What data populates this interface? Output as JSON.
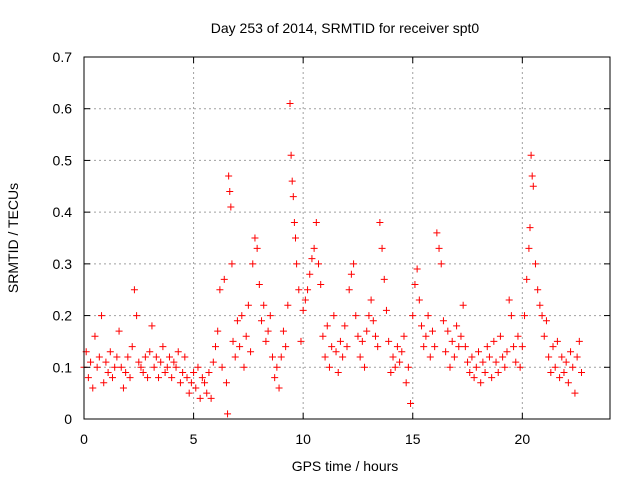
{
  "chart_data": {
    "type": "scatter",
    "title": "Day 253 of 2014, SRMTID for receiver spt0",
    "xlabel": "GPS time / hours",
    "ylabel": "SRMTID / TECUs",
    "xlim": [
      0,
      24
    ],
    "ylim": [
      0,
      0.7
    ],
    "xticks": [
      0,
      5,
      10,
      15,
      20
    ],
    "xtick_labels": [
      "0",
      "5",
      "10",
      "15",
      "20"
    ],
    "yticks": [
      0,
      0.1,
      0.2,
      0.3,
      0.4,
      0.5,
      0.6,
      0.7
    ],
    "ytick_labels": [
      "0",
      "0.1",
      "0.2",
      "0.3",
      "0.4",
      "0.5",
      "0.6",
      "0.7"
    ],
    "grid": true,
    "marker": "+",
    "color": "#ff0000",
    "series": [
      {
        "name": "spt0",
        "points": [
          [
            0.0,
            0.1
          ],
          [
            0.1,
            0.13
          ],
          [
            0.2,
            0.08
          ],
          [
            0.3,
            0.11
          ],
          [
            0.4,
            0.06
          ],
          [
            0.5,
            0.16
          ],
          [
            0.6,
            0.1
          ],
          [
            0.7,
            0.12
          ],
          [
            0.8,
            0.2
          ],
          [
            0.9,
            0.07
          ],
          [
            1.0,
            0.11
          ],
          [
            1.1,
            0.09
          ],
          [
            1.2,
            0.13
          ],
          [
            1.3,
            0.08
          ],
          [
            1.4,
            0.1
          ],
          [
            1.5,
            0.12
          ],
          [
            1.6,
            0.17
          ],
          [
            1.7,
            0.1
          ],
          [
            1.8,
            0.06
          ],
          [
            1.9,
            0.09
          ],
          [
            2.0,
            0.12
          ],
          [
            2.1,
            0.08
          ],
          [
            2.2,
            0.14
          ],
          [
            2.3,
            0.25
          ],
          [
            2.4,
            0.2
          ],
          [
            2.5,
            0.11
          ],
          [
            2.6,
            0.1
          ],
          [
            2.7,
            0.09
          ],
          [
            2.8,
            0.12
          ],
          [
            2.9,
            0.08
          ],
          [
            3.0,
            0.13
          ],
          [
            3.1,
            0.18
          ],
          [
            3.2,
            0.1
          ],
          [
            3.3,
            0.12
          ],
          [
            3.4,
            0.08
          ],
          [
            3.5,
            0.11
          ],
          [
            3.6,
            0.14
          ],
          [
            3.7,
            0.09
          ],
          [
            3.8,
            0.1
          ],
          [
            3.9,
            0.12
          ],
          [
            4.0,
            0.08
          ],
          [
            4.1,
            0.11
          ],
          [
            4.2,
            0.1
          ],
          [
            4.3,
            0.13
          ],
          [
            4.4,
            0.07
          ],
          [
            4.5,
            0.09
          ],
          [
            4.6,
            0.12
          ],
          [
            4.7,
            0.08
          ],
          [
            4.8,
            0.05
          ],
          [
            4.9,
            0.07
          ],
          [
            5.0,
            0.09
          ],
          [
            5.1,
            0.06
          ],
          [
            5.2,
            0.1
          ],
          [
            5.3,
            0.04
          ],
          [
            5.4,
            0.08
          ],
          [
            5.5,
            0.07
          ],
          [
            5.6,
            0.05
          ],
          [
            5.7,
            0.09
          ],
          [
            5.8,
            0.04
          ],
          [
            5.9,
            0.11
          ],
          [
            6.0,
            0.14
          ],
          [
            6.1,
            0.17
          ],
          [
            6.2,
            0.25
          ],
          [
            6.3,
            0.1
          ],
          [
            6.4,
            0.27
          ],
          [
            6.5,
            0.07
          ],
          [
            6.55,
            0.01
          ],
          [
            6.6,
            0.47
          ],
          [
            6.65,
            0.44
          ],
          [
            6.7,
            0.41
          ],
          [
            6.75,
            0.3
          ],
          [
            6.8,
            0.15
          ],
          [
            6.9,
            0.12
          ],
          [
            7.0,
            0.19
          ],
          [
            7.1,
            0.14
          ],
          [
            7.2,
            0.2
          ],
          [
            7.3,
            0.1
          ],
          [
            7.4,
            0.16
          ],
          [
            7.5,
            0.22
          ],
          [
            7.6,
            0.13
          ],
          [
            7.7,
            0.3
          ],
          [
            7.8,
            0.35
          ],
          [
            7.9,
            0.33
          ],
          [
            8.0,
            0.26
          ],
          [
            8.1,
            0.19
          ],
          [
            8.2,
            0.22
          ],
          [
            8.3,
            0.15
          ],
          [
            8.4,
            0.17
          ],
          [
            8.5,
            0.2
          ],
          [
            8.6,
            0.12
          ],
          [
            8.7,
            0.08
          ],
          [
            8.8,
            0.1
          ],
          [
            8.9,
            0.06
          ],
          [
            9.0,
            0.12
          ],
          [
            9.1,
            0.17
          ],
          [
            9.2,
            0.14
          ],
          [
            9.3,
            0.22
          ],
          [
            9.4,
            0.61
          ],
          [
            9.45,
            0.51
          ],
          [
            9.5,
            0.46
          ],
          [
            9.55,
            0.43
          ],
          [
            9.6,
            0.38
          ],
          [
            9.65,
            0.35
          ],
          [
            9.7,
            0.3
          ],
          [
            9.8,
            0.25
          ],
          [
            9.9,
            0.15
          ],
          [
            10.0,
            0.21
          ],
          [
            10.1,
            0.23
          ],
          [
            10.2,
            0.25
          ],
          [
            10.3,
            0.28
          ],
          [
            10.4,
            0.31
          ],
          [
            10.5,
            0.33
          ],
          [
            10.6,
            0.38
          ],
          [
            10.7,
            0.3
          ],
          [
            10.8,
            0.26
          ],
          [
            10.9,
            0.16
          ],
          [
            11.0,
            0.12
          ],
          [
            11.1,
            0.18
          ],
          [
            11.2,
            0.1
          ],
          [
            11.3,
            0.14
          ],
          [
            11.4,
            0.2
          ],
          [
            11.5,
            0.13
          ],
          [
            11.6,
            0.09
          ],
          [
            11.7,
            0.15
          ],
          [
            11.8,
            0.12
          ],
          [
            11.9,
            0.18
          ],
          [
            12.0,
            0.14
          ],
          [
            12.1,
            0.25
          ],
          [
            12.2,
            0.28
          ],
          [
            12.3,
            0.3
          ],
          [
            12.4,
            0.2
          ],
          [
            12.5,
            0.16
          ],
          [
            12.6,
            0.12
          ],
          [
            12.7,
            0.15
          ],
          [
            12.8,
            0.1
          ],
          [
            12.9,
            0.17
          ],
          [
            13.0,
            0.2
          ],
          [
            13.1,
            0.23
          ],
          [
            13.2,
            0.19
          ],
          [
            13.3,
            0.16
          ],
          [
            13.4,
            0.14
          ],
          [
            13.5,
            0.38
          ],
          [
            13.6,
            0.33
          ],
          [
            13.7,
            0.27
          ],
          [
            13.8,
            0.21
          ],
          [
            13.9,
            0.15
          ],
          [
            14.0,
            0.09
          ],
          [
            14.1,
            0.12
          ],
          [
            14.2,
            0.1
          ],
          [
            14.3,
            0.14
          ],
          [
            14.4,
            0.11
          ],
          [
            14.5,
            0.13
          ],
          [
            14.6,
            0.16
          ],
          [
            14.7,
            0.07
          ],
          [
            14.8,
            0.1
          ],
          [
            14.9,
            0.03
          ],
          [
            15.0,
            0.2
          ],
          [
            15.1,
            0.26
          ],
          [
            15.2,
            0.29
          ],
          [
            15.3,
            0.23
          ],
          [
            15.4,
            0.18
          ],
          [
            15.5,
            0.14
          ],
          [
            15.6,
            0.16
          ],
          [
            15.7,
            0.2
          ],
          [
            15.8,
            0.12
          ],
          [
            15.9,
            0.17
          ],
          [
            16.0,
            0.14
          ],
          [
            16.1,
            0.36
          ],
          [
            16.2,
            0.33
          ],
          [
            16.3,
            0.3
          ],
          [
            16.4,
            0.19
          ],
          [
            16.5,
            0.13
          ],
          [
            16.6,
            0.17
          ],
          [
            16.7,
            0.1
          ],
          [
            16.8,
            0.15
          ],
          [
            16.9,
            0.12
          ],
          [
            17.0,
            0.18
          ],
          [
            17.1,
            0.14
          ],
          [
            17.2,
            0.16
          ],
          [
            17.3,
            0.22
          ],
          [
            17.4,
            0.14
          ],
          [
            17.5,
            0.11
          ],
          [
            17.6,
            0.09
          ],
          [
            17.7,
            0.12
          ],
          [
            17.8,
            0.08
          ],
          [
            17.9,
            0.1
          ],
          [
            18.0,
            0.13
          ],
          [
            18.1,
            0.07
          ],
          [
            18.2,
            0.11
          ],
          [
            18.3,
            0.09
          ],
          [
            18.4,
            0.14
          ],
          [
            18.5,
            0.12
          ],
          [
            18.6,
            0.08
          ],
          [
            18.7,
            0.15
          ],
          [
            18.8,
            0.11
          ],
          [
            18.9,
            0.09
          ],
          [
            19.0,
            0.16
          ],
          [
            19.1,
            0.12
          ],
          [
            19.2,
            0.1
          ],
          [
            19.3,
            0.13
          ],
          [
            19.4,
            0.23
          ],
          [
            19.5,
            0.2
          ],
          [
            19.6,
            0.14
          ],
          [
            19.7,
            0.11
          ],
          [
            19.8,
            0.16
          ],
          [
            19.9,
            0.1
          ],
          [
            20.0,
            0.14
          ],
          [
            20.1,
            0.2
          ],
          [
            20.2,
            0.27
          ],
          [
            20.3,
            0.33
          ],
          [
            20.35,
            0.37
          ],
          [
            20.4,
            0.51
          ],
          [
            20.45,
            0.47
          ],
          [
            20.5,
            0.45
          ],
          [
            20.6,
            0.3
          ],
          [
            20.7,
            0.25
          ],
          [
            20.8,
            0.22
          ],
          [
            20.9,
            0.2
          ],
          [
            21.0,
            0.16
          ],
          [
            21.1,
            0.19
          ],
          [
            21.2,
            0.12
          ],
          [
            21.3,
            0.09
          ],
          [
            21.4,
            0.14
          ],
          [
            21.5,
            0.1
          ],
          [
            21.6,
            0.15
          ],
          [
            21.7,
            0.08
          ],
          [
            21.8,
            0.12
          ],
          [
            21.9,
            0.09
          ],
          [
            22.0,
            0.11
          ],
          [
            22.1,
            0.07
          ],
          [
            22.2,
            0.13
          ],
          [
            22.3,
            0.1
          ],
          [
            22.4,
            0.05
          ],
          [
            22.5,
            0.12
          ],
          [
            22.6,
            0.15
          ],
          [
            22.7,
            0.09
          ]
        ]
      }
    ]
  }
}
